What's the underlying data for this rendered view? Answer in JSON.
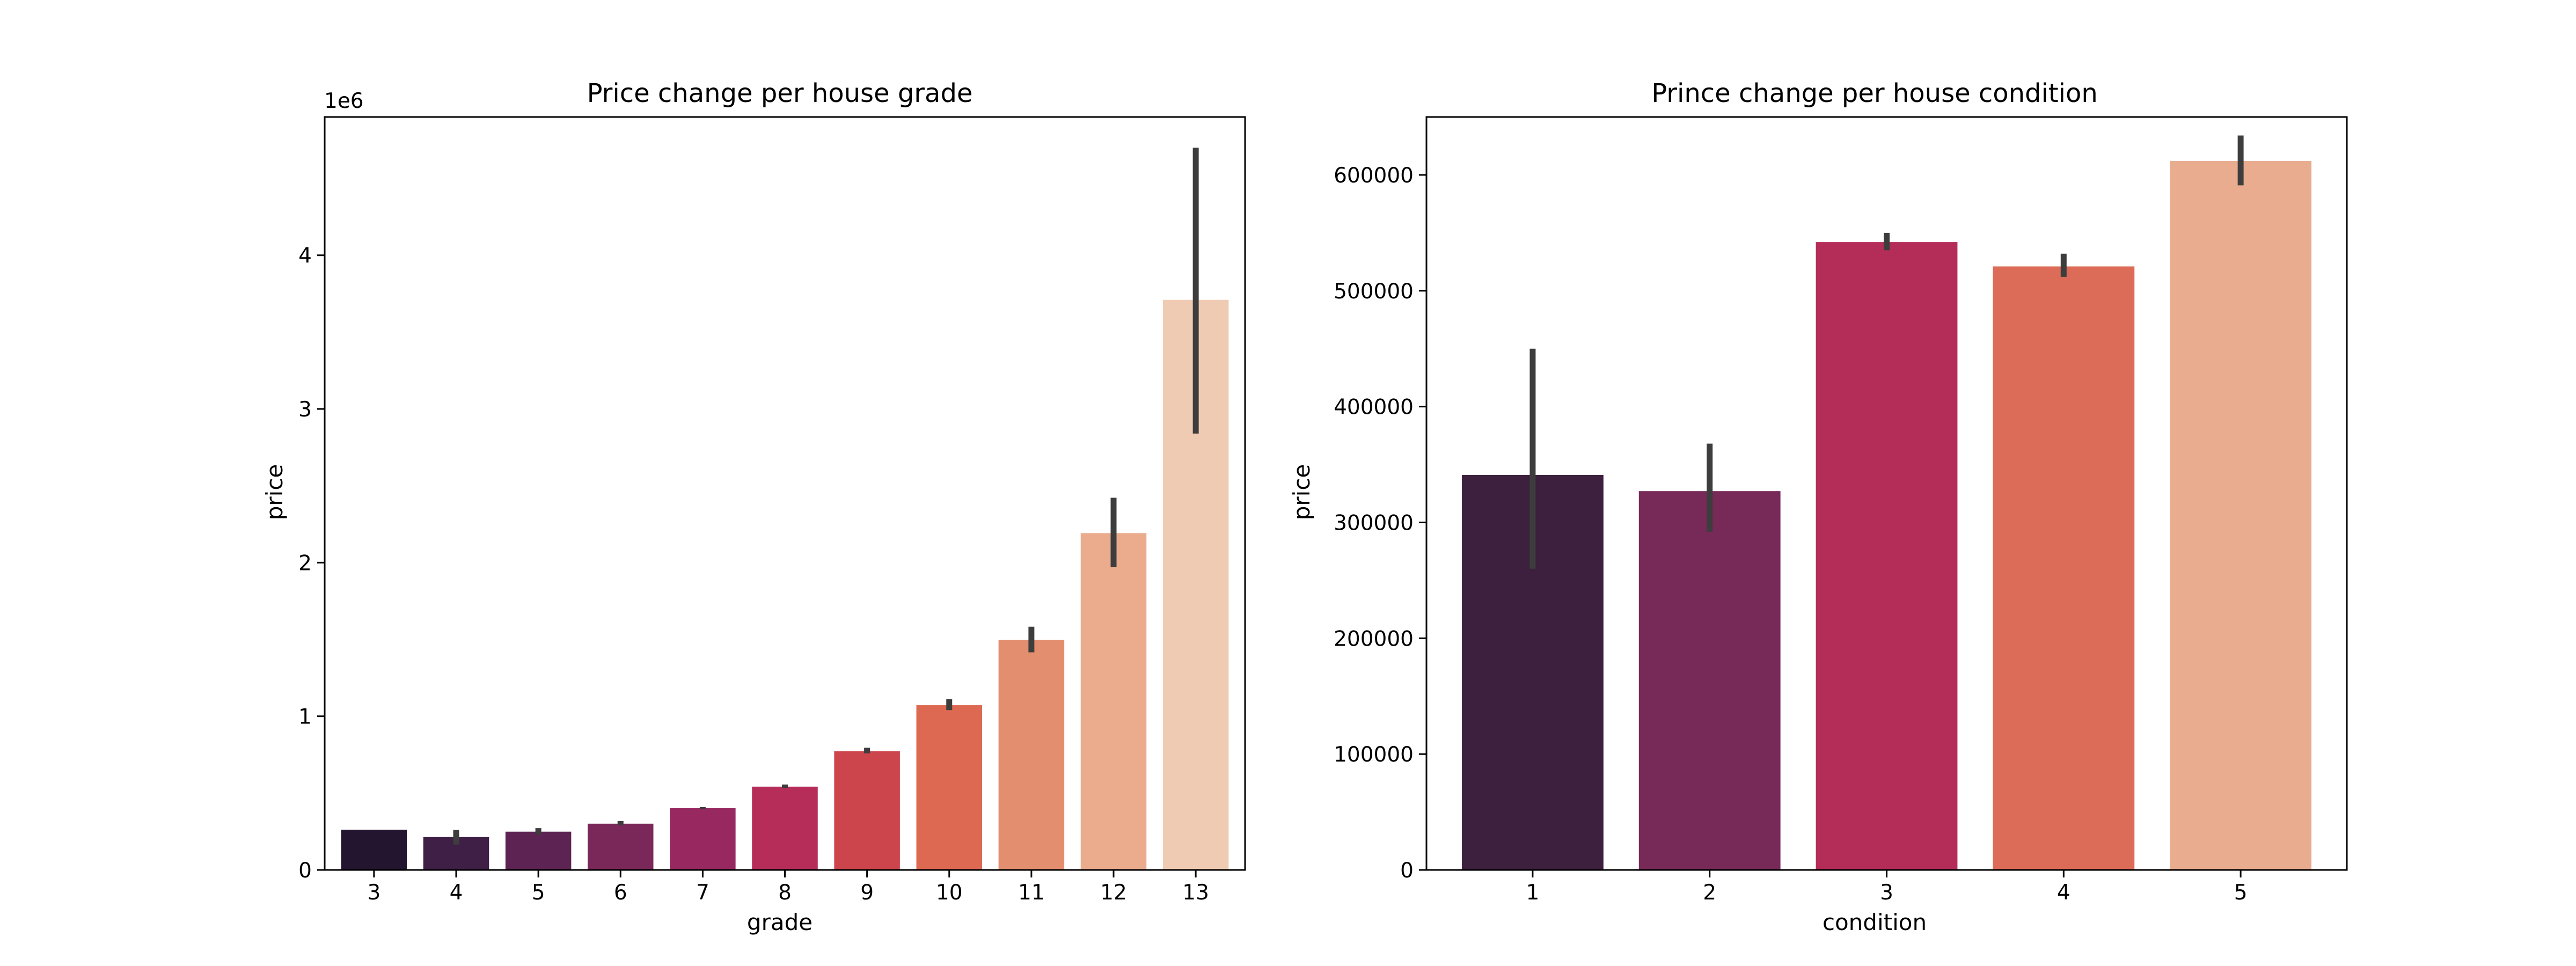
{
  "chart_data": [
    {
      "type": "bar",
      "title": "Price change per house grade",
      "xlabel": "grade",
      "ylabel": "price",
      "offset_label": "1e6",
      "categories": [
        "3",
        "4",
        "5",
        "6",
        "7",
        "8",
        "9",
        "10",
        "11",
        "12",
        "13"
      ],
      "values": [
        262000,
        214000,
        249000,
        301000,
        402000,
        542000,
        773000,
        1072000,
        1497000,
        2192000,
        3710000
      ],
      "error_low": [
        262000,
        165000,
        232000,
        292000,
        397000,
        533000,
        759000,
        1040000,
        1416000,
        1970000,
        2840000
      ],
      "error_high": [
        262000,
        260000,
        272000,
        318000,
        409000,
        556000,
        795000,
        1111000,
        1583000,
        2422000,
        4700000
      ],
      "ylim": [
        0,
        4900000
      ],
      "yticks": [
        0,
        1000000,
        2000000,
        3000000,
        4000000
      ],
      "ytick_labels": [
        "0",
        "1",
        "2",
        "3",
        "4"
      ],
      "colors": [
        "#231530",
        "#3f1f46",
        "#5c2353",
        "#7a2759",
        "#972860",
        "#b52d58",
        "#cc454c",
        "#dd6952",
        "#e38e6e",
        "#eaac8c",
        "#f0cbb3"
      ],
      "grid": false
    },
    {
      "type": "bar",
      "title": "Prince change per house condition",
      "xlabel": "condition",
      "ylabel": "price",
      "categories": [
        "1",
        "2",
        "3",
        "4",
        "5"
      ],
      "values": [
        341000,
        327000,
        542000,
        521000,
        612000
      ],
      "error_low": [
        260000,
        292000,
        535000,
        512000,
        591000
      ],
      "error_high": [
        450000,
        368000,
        550000,
        532000,
        634000
      ],
      "ylim": [
        0,
        650000
      ],
      "yticks": [
        0,
        100000,
        200000,
        300000,
        400000,
        500000,
        600000
      ],
      "ytick_labels": [
        "0",
        "100000",
        "200000",
        "300000",
        "400000",
        "500000",
        "600000"
      ],
      "colors": [
        "#3d1f3e",
        "#772958",
        "#b32d58",
        "#dc6b57",
        "#e9ac8f"
      ],
      "grid": false
    }
  ]
}
